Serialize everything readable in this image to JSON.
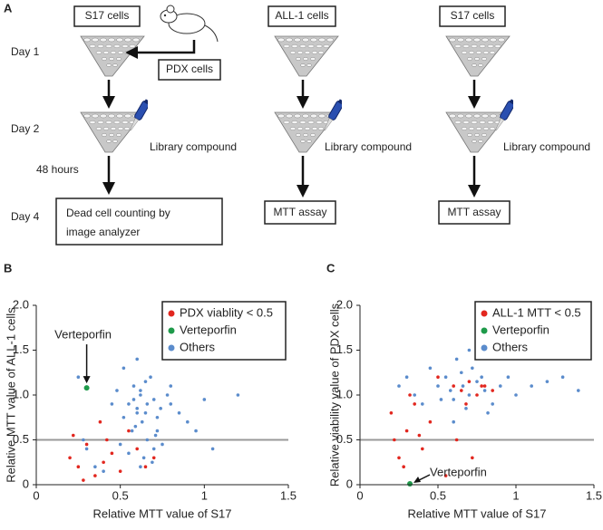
{
  "panel_a": {
    "label": "A",
    "days": [
      "Day 1",
      "Day 2",
      "48 hours",
      "Day 4"
    ],
    "cells": [
      "S17 cells",
      "ALL-1 cells",
      "S17 cells"
    ],
    "pdx": "PDX cells",
    "compound": [
      "Library compound",
      "Library compound",
      "Library compound"
    ],
    "readout": [
      "Dead cell counting by",
      "image analyzer",
      "MTT assay",
      "MTT assay"
    ]
  },
  "chart_data": [
    {
      "type": "scatter",
      "label": "B",
      "x_label": "Relative MTT value of S17",
      "y_label": "Relative MTT value of ALL-1 cells",
      "xlim": [
        0,
        1.5
      ],
      "xticks": [
        0,
        0.5,
        1,
        1.5
      ],
      "ylim": [
        0,
        2
      ],
      "yticks": [
        0,
        0.5,
        {
          "value": 1,
          "label": "1.0"
        },
        1.5,
        {
          "value": 2,
          "label": "2.0"
        }
      ],
      "hline": 0.5,
      "legend": "upper right",
      "annotation": "Verteporfin",
      "series": [
        {
          "name": "Others",
          "color": "#5b8ccc",
          "x": [
            0.55,
            0.6,
            0.62,
            0.65,
            0.58,
            0.7,
            0.72,
            0.68,
            0.63,
            0.57,
            0.66,
            0.75,
            0.8,
            0.52,
            0.6,
            0.64,
            0.69,
            0.71,
            0.59,
            0.62,
            0.74,
            0.78,
            0.85,
            0.9,
            0.95,
            1.05,
            1.2,
            0.3,
            0.35,
            0.4,
            0.45,
            0.25,
            0.28,
            0.5,
            0.55,
            0.62,
            0.7,
            0.65,
            0.58,
            0.8,
            0.72,
            0.66,
            0.6,
            1.0,
            0.48,
            0.52
          ],
          "values": [
            0.9,
            0.85,
            1.0,
            0.8,
            1.1,
            0.95,
            0.75,
            1.2,
            0.7,
            0.6,
            0.5,
            0.45,
            0.9,
            1.3,
            1.4,
            0.3,
            0.25,
            0.55,
            0.65,
            1.05,
            0.85,
            1.0,
            0.8,
            0.7,
            0.6,
            0.4,
            1.0,
            0.4,
            0.2,
            0.15,
            0.9,
            1.2,
            0.5,
            0.45,
            0.35,
            0.2,
            0.4,
            1.15,
            0.95,
            1.1,
            0.6,
            0.9,
            0.8,
            0.95,
            1.05,
            0.75
          ]
        },
        {
          "name": "PDX viablity < 0.5",
          "color": "#e2271f",
          "x": [
            0.2,
            0.25,
            0.3,
            0.35,
            0.4,
            0.22,
            0.28,
            0.45,
            0.5,
            0.6,
            0.65,
            0.7,
            0.55,
            0.38,
            0.42
          ],
          "values": [
            0.3,
            0.2,
            0.45,
            0.1,
            0.25,
            0.55,
            0.05,
            0.35,
            0.15,
            0.4,
            0.2,
            0.3,
            0.6,
            0.7,
            0.5
          ]
        },
        {
          "name": "Verteporfin",
          "color": "#1e9a4a",
          "x": [
            0.3
          ],
          "values": [
            1.08
          ]
        }
      ],
      "legend_order": [
        1,
        2,
        0
      ]
    },
    {
      "type": "scatter",
      "label": "C",
      "x_label": "Relative MTT value of S17",
      "y_label": "Relative viability value of PDX cells",
      "xlim": [
        0,
        1.5
      ],
      "xticks": [
        0,
        0.5,
        1,
        1.5
      ],
      "ylim": [
        0,
        2
      ],
      "yticks": [
        0,
        0.5,
        {
          "value": 1,
          "label": "1.0"
        },
        1.5,
        {
          "value": 2,
          "label": "2.0"
        }
      ],
      "hline": 0.5,
      "legend": "upper right",
      "annotation": "Verteporfin",
      "series": [
        {
          "name": "Others",
          "color": "#5b8ccc",
          "x": [
            0.5,
            0.55,
            0.6,
            0.65,
            0.7,
            0.75,
            0.8,
            0.85,
            0.9,
            0.95,
            1.0,
            1.1,
            1.2,
            0.45,
            0.4,
            0.35,
            0.3,
            0.25,
            0.62,
            0.68,
            0.72,
            0.58,
            0.78,
            0.52,
            1.3,
            1.4,
            0.6,
            0.7,
            0.82,
            0.66
          ],
          "values": [
            1.1,
            1.2,
            0.95,
            1.25,
            1.0,
            1.15,
            1.05,
            0.9,
            1.1,
            1.2,
            1.0,
            1.1,
            1.15,
            1.3,
            0.9,
            1.0,
            1.2,
            1.1,
            1.4,
            0.85,
            1.3,
            1.05,
            1.2,
            0.95,
            1.2,
            1.05,
            0.7,
            1.5,
            0.8,
            1.1
          ]
        },
        {
          "name": "ALL-1 MTT < 0.5",
          "color": "#e2271f",
          "x": [
            0.2,
            0.22,
            0.25,
            0.3,
            0.35,
            0.4,
            0.45,
            0.28,
            0.32,
            0.38,
            0.6,
            0.65,
            0.7,
            0.75,
            0.8,
            0.72,
            0.55,
            0.62,
            0.5,
            0.85,
            0.68,
            0.78
          ],
          "values": [
            0.8,
            0.5,
            0.3,
            0.6,
            0.9,
            0.4,
            0.7,
            0.2,
            1.0,
            0.55,
            1.1,
            1.05,
            1.15,
            1.0,
            1.1,
            0.3,
            0.1,
            0.5,
            1.2,
            1.05,
            0.9,
            1.1
          ]
        },
        {
          "name": "Verteporfin",
          "color": "#1e9a4a",
          "x": [
            0.32
          ],
          "values": [
            0.01
          ]
        }
      ],
      "legend_order": [
        1,
        2,
        0
      ]
    }
  ]
}
